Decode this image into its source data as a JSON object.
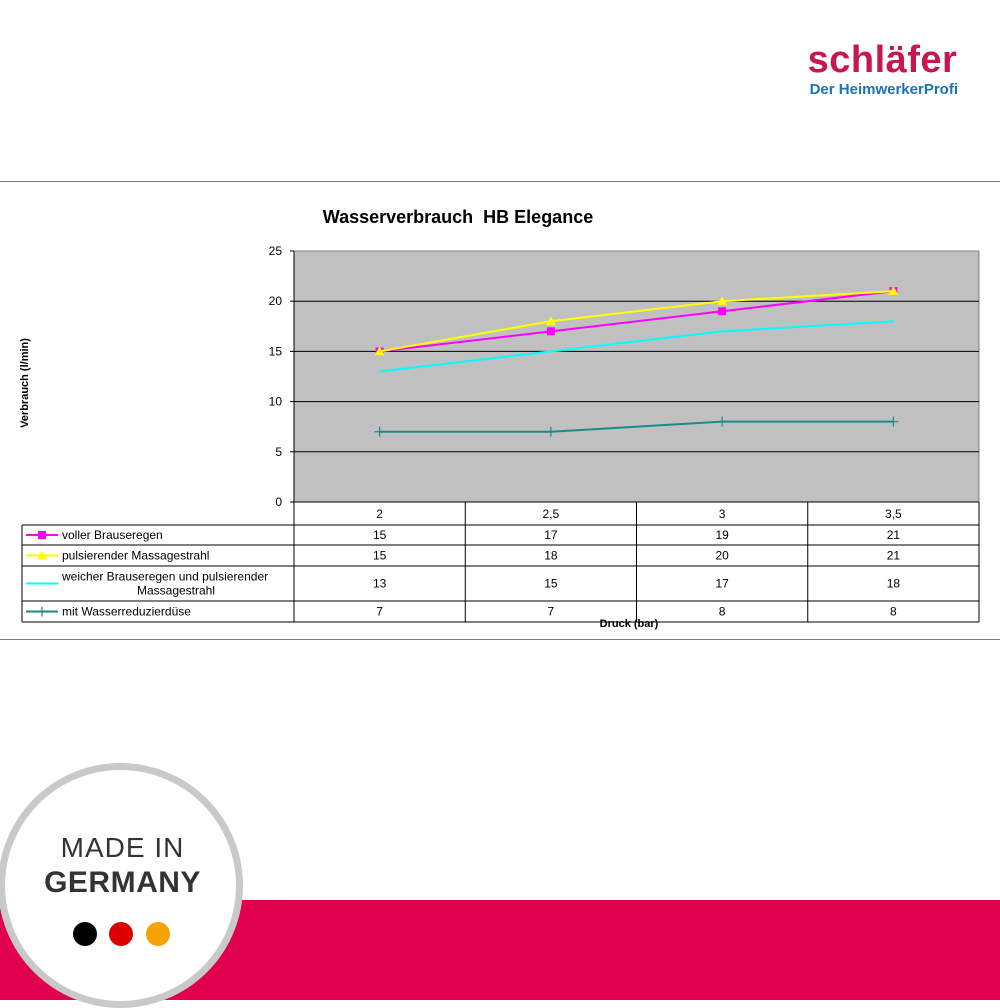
{
  "brand": {
    "name": "schläfer",
    "tagline": "Der HeimwerkerProfi",
    "name_color": "#c8174f",
    "tagline_color": "#1a72b8"
  },
  "badge": {
    "line1": "MADE IN",
    "line2": "GERMANY",
    "band_color": "#e0004d",
    "dot_colors": [
      "#000000",
      "#dd0000",
      "#f5a300"
    ]
  },
  "chart_data": {
    "type": "line",
    "title": "Wasserverbrauch  HB Elegance",
    "xlabel": "Druck (bar)",
    "ylabel": "Verbrauch (l/min)",
    "categories": [
      "2",
      "2,5",
      "3",
      "3,5"
    ],
    "ylim": [
      0,
      25
    ],
    "yticks": [
      0,
      5,
      10,
      15,
      20,
      25
    ],
    "grid": true,
    "plot_background": "#c0c0c0",
    "legend": "data-table",
    "series": [
      {
        "name": "voller Brauseregen",
        "values": [
          15,
          17,
          19,
          21
        ],
        "color": "#ff00ff",
        "marker": "square"
      },
      {
        "name": "pulsierender Massagestrahl",
        "values": [
          15,
          18,
          20,
          21
        ],
        "color": "#ffff00",
        "marker": "triangle"
      },
      {
        "name": "weicher Brauseregen und pulsierender Massagestrahl",
        "values": [
          13,
          15,
          17,
          18
        ],
        "color": "#00ffff",
        "marker": "none"
      },
      {
        "name": "mit Wasserreduzierdüse",
        "values": [
          7,
          7,
          8,
          8
        ],
        "color": "#1a8a8a",
        "marker": "plus"
      }
    ]
  }
}
